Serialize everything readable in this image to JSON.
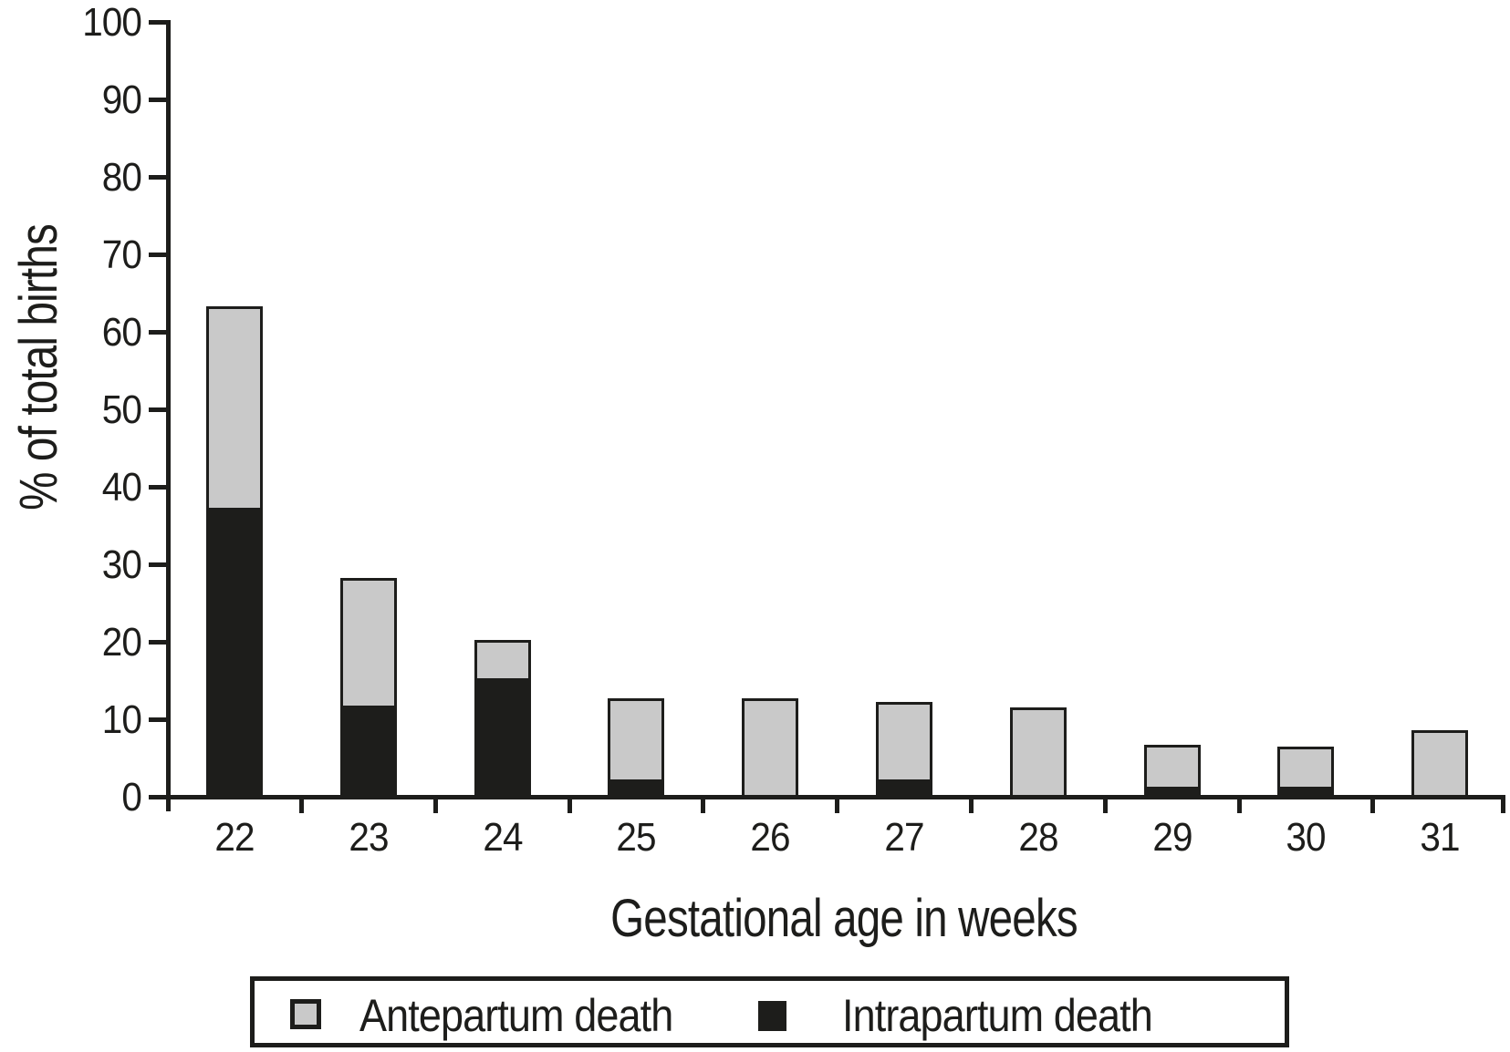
{
  "figure": {
    "background": "#ffffff",
    "ink_color": "#1d1d1b",
    "bar_gray": "#c9c9c9"
  },
  "chart_data": {
    "type": "bar",
    "stacked": true,
    "title": "",
    "xlabel": "Gestational age in weeks",
    "ylabel": "% of total births",
    "categories": [
      "22",
      "23",
      "24",
      "25",
      "26",
      "27",
      "28",
      "29",
      "30",
      "31"
    ],
    "series": [
      {
        "name": "Intrapartum death",
        "color": "#1d1d1b",
        "values": [
          37,
          11.5,
          15,
          2,
          0,
          2,
          0,
          1,
          1,
          0
        ]
      },
      {
        "name": "Antepartum death",
        "color": "#c9c9c9",
        "values": [
          26,
          16.5,
          5,
          10.5,
          12.5,
          10,
          11.3,
          5.5,
          5.2,
          8.3
        ]
      }
    ],
    "stacked_totals": [
      63,
      28,
      20,
      12.5,
      12.5,
      12,
      11.3,
      6.5,
      6.2,
      8.3
    ],
    "ylim": [
      0,
      100
    ],
    "y_ticks": [
      0,
      10,
      20,
      30,
      40,
      50,
      60,
      70,
      80,
      90,
      100
    ],
    "grid": false,
    "legend_position": "bottom",
    "legend": [
      {
        "label": "Antepartum death",
        "swatch": "gray"
      },
      {
        "label": "Intrapartum death",
        "swatch": "black"
      }
    ]
  }
}
